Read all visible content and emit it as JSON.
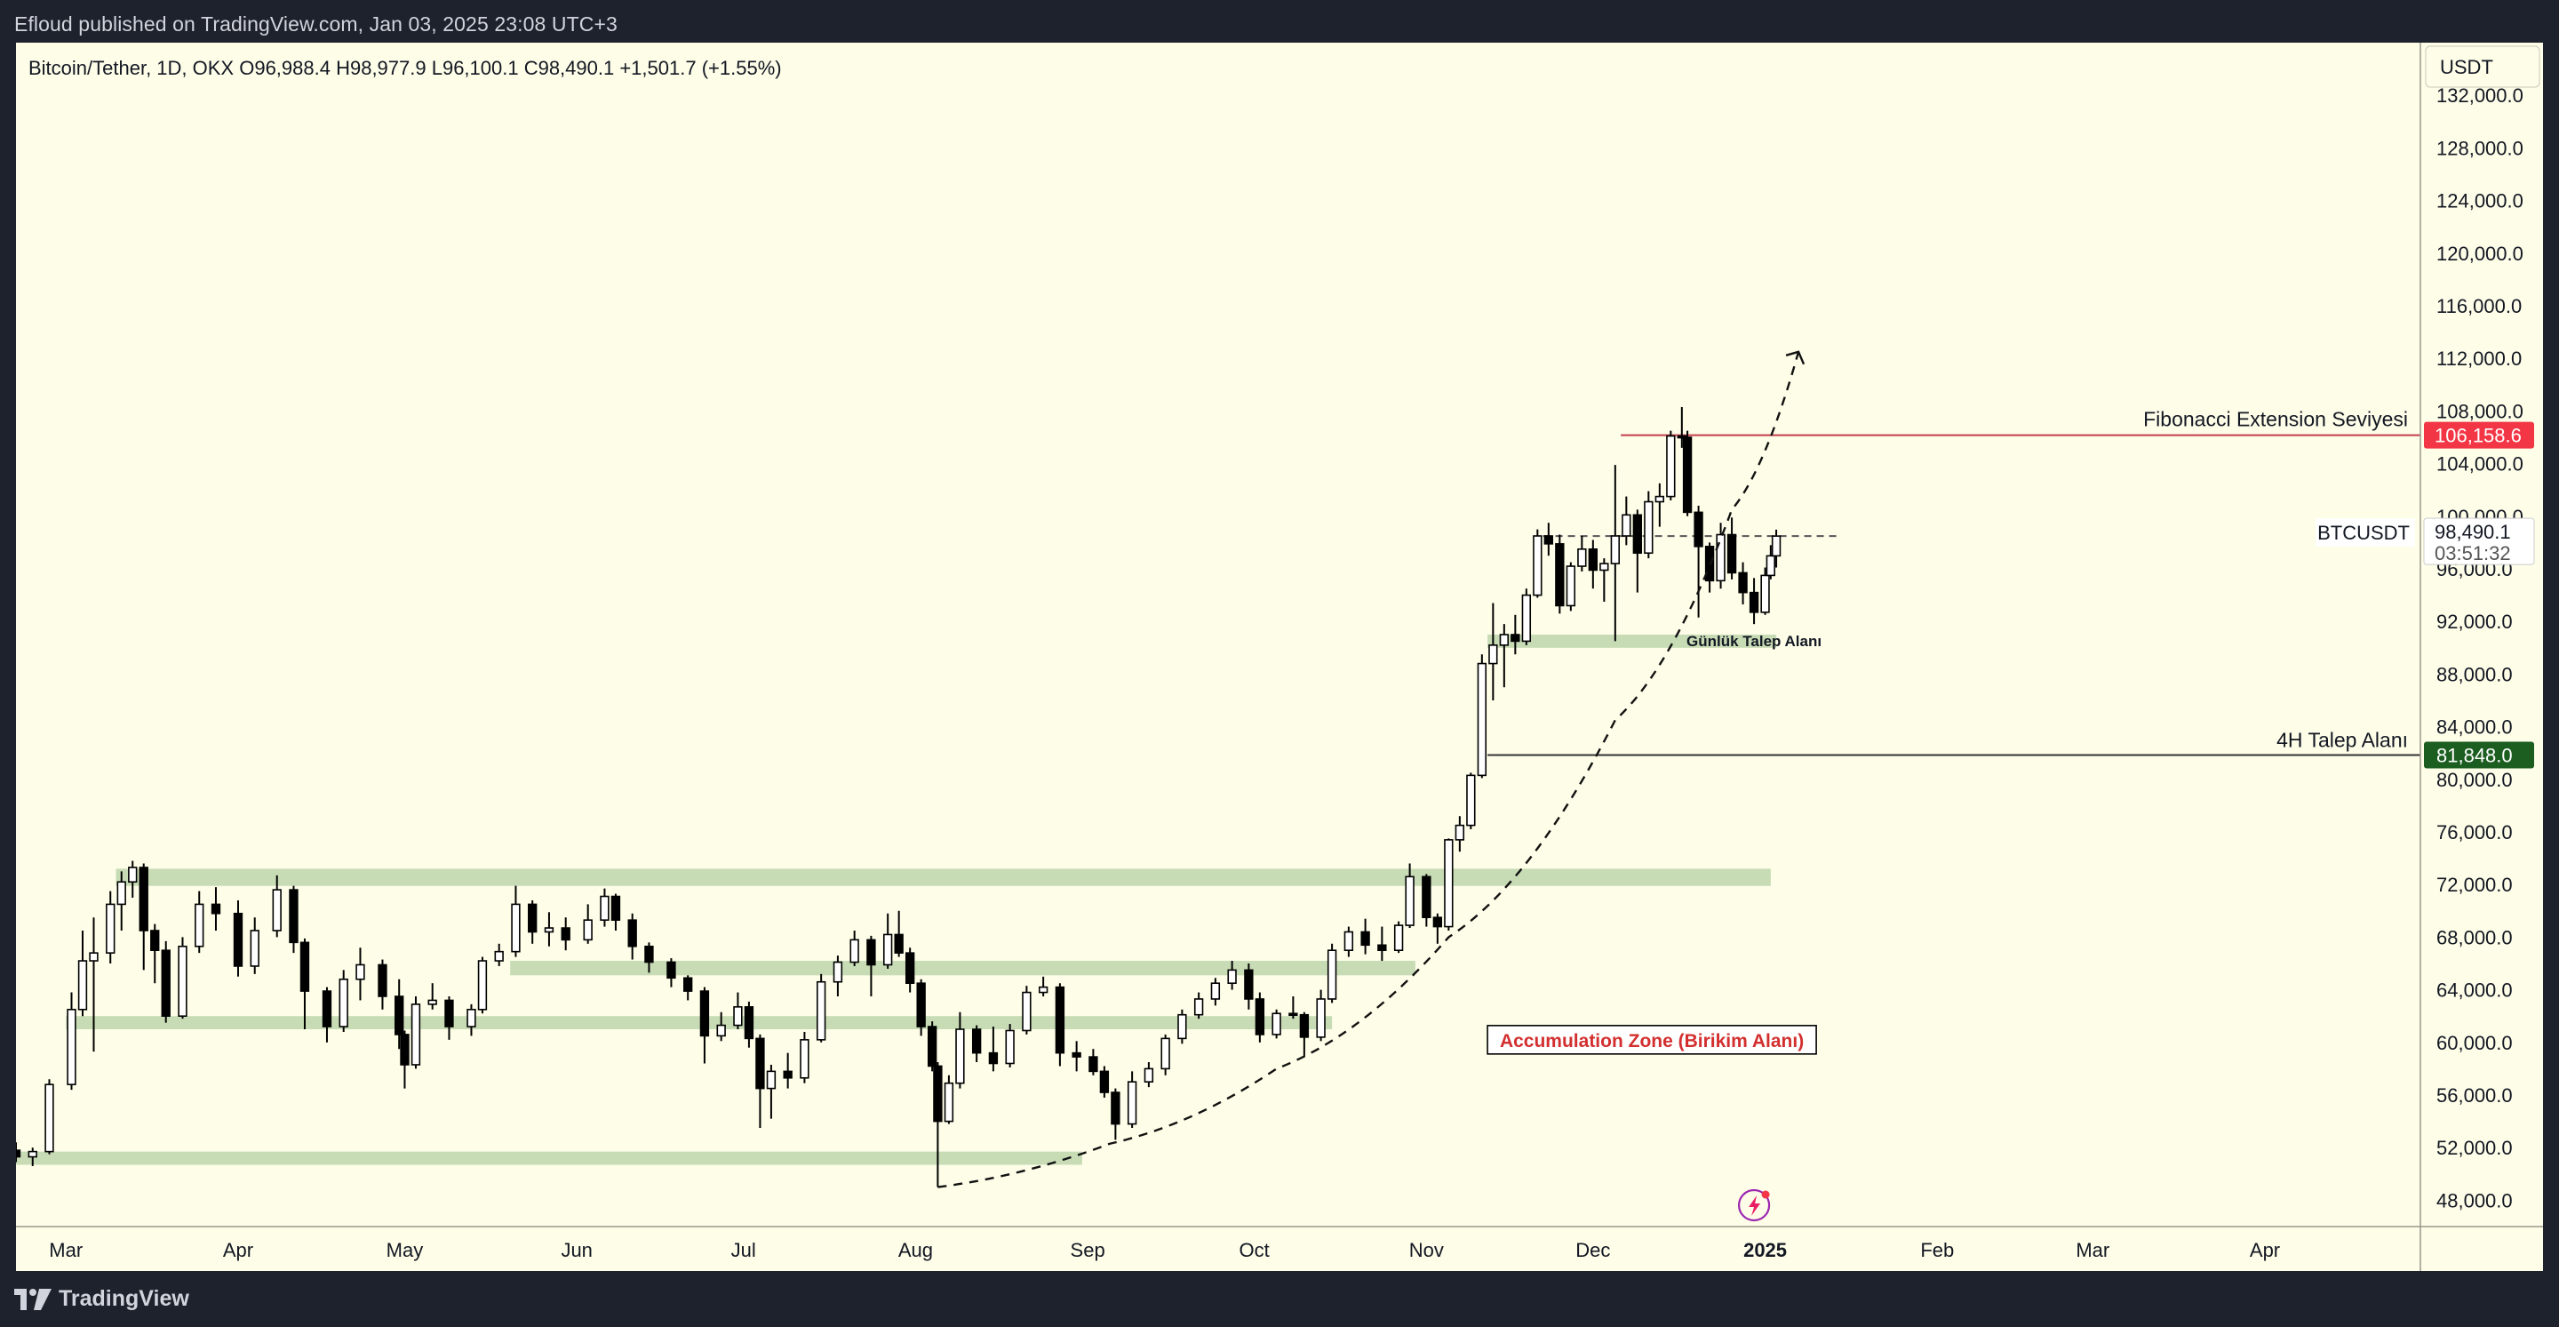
{
  "header": {
    "caption": "Efloud published on TradingView.com, Jan 03, 2025 23:08 UTC+3"
  },
  "footer": {
    "brand": "TradingView"
  },
  "chart_data": {
    "type": "candlestick",
    "title": "Bitcoin/Tether, 1D, OKX",
    "ohlc_legend": {
      "open": "O96,988.4",
      "high": "H98,977.9",
      "low": "L96,100.1",
      "close": "C98,490.1",
      "change": "+1,501.7 (+1.55%)"
    },
    "currency": "USDT",
    "symbol": "BTCUSDT",
    "last_price": 98490.1,
    "last_price_label": "98,490.1",
    "countdown": "03:51:32",
    "y_range": [
      46000,
      136000
    ],
    "y_ticks": [
      48000,
      52000,
      56000,
      60000,
      64000,
      68000,
      72000,
      76000,
      80000,
      84000,
      88000,
      92000,
      96000,
      100000,
      104000,
      108000,
      112000,
      116000,
      120000,
      124000,
      128000,
      132000
    ],
    "y_tick_labels": [
      "48,000.0",
      "52,000.0",
      "56,000.0",
      "60,000.0",
      "64,000.0",
      "68,000.0",
      "72,000.0",
      "76,000.0",
      "80,000.0",
      "84,000.0",
      "88,000.0",
      "92,000.0",
      "96,000.0",
      "100,000.0",
      "104,000.0",
      "108,000.0",
      "112,000.0",
      "116,000.0",
      "120,000.0",
      "124,000.0",
      "128,000.0",
      "132,000.0"
    ],
    "x_range": [
      "2024-02-21",
      "2025-04-29"
    ],
    "x_ticks": [
      {
        "date": "2024-03-01",
        "label": "Mar"
      },
      {
        "date": "2024-04-01",
        "label": "Apr"
      },
      {
        "date": "2024-05-01",
        "label": "May"
      },
      {
        "date": "2024-06-01",
        "label": "Jun"
      },
      {
        "date": "2024-07-01",
        "label": "Jul"
      },
      {
        "date": "2024-08-01",
        "label": "Aug"
      },
      {
        "date": "2024-09-01",
        "label": "Sep"
      },
      {
        "date": "2024-10-01",
        "label": "Oct"
      },
      {
        "date": "2024-11-01",
        "label": "Nov"
      },
      {
        "date": "2024-12-01",
        "label": "Dec"
      },
      {
        "date": "2025-01-01",
        "label": "2025",
        "bold": true
      },
      {
        "date": "2025-02-01",
        "label": "Feb"
      },
      {
        "date": "2025-03-01",
        "label": "Mar"
      },
      {
        "date": "2025-04-01",
        "label": "Apr"
      }
    ],
    "candles_daily": [
      [
        "2024-02-21",
        51800,
        52400,
        50900,
        51300
      ],
      [
        "2024-02-24",
        51300,
        52000,
        50600,
        51700
      ],
      [
        "2024-02-27",
        51700,
        57200,
        51500,
        56800
      ],
      [
        "2024-03-02",
        56800,
        63800,
        56400,
        62500
      ],
      [
        "2024-03-04",
        62500,
        68500,
        62000,
        66200
      ],
      [
        "2024-03-06",
        66200,
        69500,
        59300,
        66800
      ],
      [
        "2024-03-09",
        66800,
        71500,
        66000,
        70500
      ],
      [
        "2024-03-11",
        70500,
        73000,
        68500,
        72200
      ],
      [
        "2024-03-13",
        72200,
        73800,
        71000,
        73300
      ],
      [
        "2024-03-15",
        73300,
        73600,
        65500,
        68500
      ],
      [
        "2024-03-17",
        68500,
        69000,
        64500,
        67000
      ],
      [
        "2024-03-19",
        67000,
        67700,
        61500,
        62000
      ],
      [
        "2024-03-22",
        62000,
        68000,
        61800,
        67300
      ],
      [
        "2024-03-25",
        67300,
        71500,
        66800,
        70500
      ],
      [
        "2024-03-28",
        70500,
        71800,
        68500,
        69800
      ],
      [
        "2024-04-01",
        69800,
        70800,
        65000,
        65800
      ],
      [
        "2024-04-04",
        65800,
        69500,
        65200,
        68500
      ],
      [
        "2024-04-08",
        68500,
        72700,
        68000,
        71600
      ],
      [
        "2024-04-11",
        71600,
        71900,
        66800,
        67600
      ],
      [
        "2024-04-13",
        67600,
        67900,
        61000,
        63900
      ],
      [
        "2024-04-17",
        63900,
        64200,
        60000,
        61200
      ],
      [
        "2024-04-20",
        61200,
        65500,
        60800,
        64800
      ],
      [
        "2024-04-23",
        64800,
        67200,
        63200,
        65900
      ],
      [
        "2024-04-27",
        65900,
        66300,
        62500,
        63500
      ],
      [
        "2024-04-30",
        63500,
        64800,
        59500,
        60600
      ],
      [
        "2024-05-01",
        60600,
        60900,
        56500,
        58300
      ],
      [
        "2024-05-03",
        58300,
        63500,
        58000,
        62900
      ],
      [
        "2024-05-06",
        62900,
        64500,
        62500,
        63200
      ],
      [
        "2024-05-09",
        63200,
        63500,
        60200,
        61200
      ],
      [
        "2024-05-13",
        61200,
        62900,
        60500,
        62500
      ],
      [
        "2024-05-15",
        62500,
        66500,
        62200,
        66200
      ],
      [
        "2024-05-18",
        66200,
        67500,
        65800,
        66900
      ],
      [
        "2024-05-21",
        66900,
        71900,
        66500,
        70500
      ],
      [
        "2024-05-24",
        70500,
        70800,
        67500,
        68400
      ],
      [
        "2024-05-27",
        68400,
        69900,
        67300,
        68700
      ],
      [
        "2024-05-30",
        68700,
        69500,
        67000,
        67800
      ],
      [
        "2024-06-03",
        67800,
        70500,
        67500,
        69300
      ],
      [
        "2024-06-06",
        69300,
        71700,
        68800,
        71100
      ],
      [
        "2024-06-08",
        71100,
        71300,
        68500,
        69300
      ],
      [
        "2024-06-11",
        69300,
        69800,
        66300,
        67300
      ],
      [
        "2024-06-14",
        67300,
        67600,
        65300,
        66100
      ],
      [
        "2024-06-18",
        66100,
        66400,
        64200,
        64900
      ],
      [
        "2024-06-21",
        64900,
        65100,
        63200,
        63900
      ],
      [
        "2024-06-24",
        63900,
        64200,
        58400,
        60500
      ],
      [
        "2024-06-27",
        60500,
        62300,
        60100,
        61300
      ],
      [
        "2024-06-30",
        61300,
        63800,
        61000,
        62700
      ],
      [
        "2024-07-02",
        62700,
        63100,
        59600,
        60300
      ],
      [
        "2024-07-04",
        60300,
        60600,
        53500,
        56500
      ],
      [
        "2024-07-06",
        56500,
        58300,
        54200,
        57800
      ],
      [
        "2024-07-09",
        57800,
        59200,
        56500,
        57300
      ],
      [
        "2024-07-12",
        57300,
        60800,
        56900,
        60200
      ],
      [
        "2024-07-15",
        60200,
        65200,
        60000,
        64600
      ],
      [
        "2024-07-18",
        64600,
        66600,
        63500,
        66100
      ],
      [
        "2024-07-21",
        66100,
        68500,
        65800,
        67800
      ],
      [
        "2024-07-24",
        67800,
        68100,
        63500,
        65900
      ],
      [
        "2024-07-27",
        65900,
        69800,
        65600,
        68200
      ],
      [
        "2024-07-29",
        68200,
        70000,
        66500,
        66800
      ],
      [
        "2024-07-31",
        66800,
        67200,
        63800,
        64500
      ],
      [
        "2024-08-02",
        64500,
        64800,
        60500,
        61200
      ],
      [
        "2024-08-04",
        61200,
        61600,
        57800,
        58200
      ],
      [
        "2024-08-05",
        58200,
        58500,
        49000,
        54000
      ],
      [
        "2024-08-07",
        54000,
        57500,
        53800,
        56900
      ],
      [
        "2024-08-09",
        56900,
        62300,
        56500,
        61000
      ],
      [
        "2024-08-12",
        61000,
        61300,
        58500,
        59200
      ],
      [
        "2024-08-15",
        59200,
        61200,
        57800,
        58400
      ],
      [
        "2024-08-18",
        58400,
        61400,
        58100,
        60900
      ],
      [
        "2024-08-21",
        60900,
        64300,
        60600,
        63800
      ],
      [
        "2024-08-24",
        63800,
        65000,
        63500,
        64200
      ],
      [
        "2024-08-27",
        64200,
        64500,
        58200,
        59200
      ],
      [
        "2024-08-30",
        59200,
        60100,
        57800,
        58900
      ],
      [
        "2024-09-02",
        58900,
        59500,
        57500,
        57800
      ],
      [
        "2024-09-04",
        57800,
        58200,
        55800,
        56200
      ],
      [
        "2024-09-06",
        56200,
        56500,
        52600,
        53800
      ],
      [
        "2024-09-09",
        53800,
        57800,
        53500,
        57000
      ],
      [
        "2024-09-12",
        57000,
        58500,
        56600,
        58000
      ],
      [
        "2024-09-15",
        58000,
        60600,
        57500,
        60300
      ],
      [
        "2024-09-18",
        60300,
        62500,
        59900,
        62100
      ],
      [
        "2024-09-21",
        62100,
        63800,
        61800,
        63300
      ],
      [
        "2024-09-24",
        63300,
        64900,
        62800,
        64500
      ],
      [
        "2024-09-27",
        64500,
        66200,
        64000,
        65500
      ],
      [
        "2024-09-30",
        65500,
        66000,
        62500,
        63300
      ],
      [
        "2024-10-02",
        63300,
        63800,
        60000,
        60600
      ],
      [
        "2024-10-05",
        60600,
        62500,
        60300,
        62200
      ],
      [
        "2024-10-08",
        62200,
        63500,
        61800,
        62100
      ],
      [
        "2024-10-10",
        62100,
        62300,
        58900,
        60400
      ],
      [
        "2024-10-13",
        60400,
        64000,
        60100,
        63300
      ],
      [
        "2024-10-15",
        63300,
        67500,
        63000,
        67000
      ],
      [
        "2024-10-18",
        67000,
        68800,
        66500,
        68400
      ],
      [
        "2024-10-21",
        68400,
        69400,
        66700,
        67400
      ],
      [
        "2024-10-24",
        67400,
        68800,
        66200,
        67000
      ],
      [
        "2024-10-27",
        67000,
        69200,
        66800,
        68900
      ],
      [
        "2024-10-29",
        68900,
        73600,
        68700,
        72600
      ],
      [
        "2024-11-01",
        72600,
        72800,
        68800,
        69500
      ],
      [
        "2024-11-03",
        69500,
        69800,
        67500,
        68800
      ],
      [
        "2024-11-05",
        68800,
        75500,
        68500,
        75400
      ],
      [
        "2024-11-07",
        75400,
        77200,
        74500,
        76500
      ],
      [
        "2024-11-09",
        76500,
        80500,
        76200,
        80300
      ],
      [
        "2024-11-11",
        80300,
        89500,
        80100,
        88800
      ],
      [
        "2024-11-13",
        88800,
        93400,
        86000,
        90200
      ],
      [
        "2024-11-15",
        90200,
        91800,
        87000,
        91000
      ],
      [
        "2024-11-17",
        91000,
        92500,
        89500,
        90500
      ],
      [
        "2024-11-19",
        90500,
        94500,
        90200,
        94000
      ],
      [
        "2024-11-21",
        94000,
        99000,
        93800,
        98500
      ],
      [
        "2024-11-23",
        98500,
        99500,
        97000,
        97900
      ],
      [
        "2024-11-25",
        97900,
        98600,
        92600,
        93200
      ],
      [
        "2024-11-27",
        93200,
        96500,
        92800,
        96200
      ],
      [
        "2024-11-29",
        96200,
        98500,
        95800,
        97500
      ],
      [
        "2024-12-01",
        97500,
        98200,
        94500,
        95900
      ],
      [
        "2024-12-03",
        95900,
        96800,
        93500,
        96400
      ],
      [
        "2024-12-05",
        96400,
        103900,
        90500,
        98500
      ],
      [
        "2024-12-07",
        98500,
        101500,
        97800,
        100100
      ],
      [
        "2024-12-09",
        100100,
        100500,
        94200,
        97200
      ],
      [
        "2024-12-11",
        97200,
        101900,
        96800,
        101100
      ],
      [
        "2024-12-13",
        101100,
        102500,
        99200,
        101500
      ],
      [
        "2024-12-15",
        101500,
        106500,
        101200,
        106100
      ],
      [
        "2024-12-17",
        106100,
        108300,
        105200,
        106000
      ],
      [
        "2024-12-18",
        106000,
        106500,
        100000,
        100300
      ],
      [
        "2024-12-20",
        100300,
        100800,
        92300,
        97700
      ],
      [
        "2024-12-22",
        97700,
        98000,
        94200,
        95100
      ],
      [
        "2024-12-24",
        95100,
        99500,
        94500,
        98600
      ],
      [
        "2024-12-26",
        98600,
        99900,
        95200,
        95700
      ],
      [
        "2024-12-28",
        95700,
        96500,
        93300,
        94200
      ],
      [
        "2024-12-30",
        94200,
        95300,
        91800,
        92700
      ],
      [
        "2025-01-01",
        92700,
        96100,
        92500,
        95500
      ],
      [
        "2025-01-02",
        95500,
        97800,
        95200,
        96988
      ],
      [
        "2025-01-03",
        96988,
        98978,
        96100,
        98490
      ]
    ],
    "drawings": {
      "zones": [
        {
          "name": "zone-72k",
          "from": "2024-03-10",
          "to": "2025-01-02",
          "low": 71900,
          "high": 73200
        },
        {
          "name": "zone-65k",
          "from": "2024-05-20",
          "to": "2024-10-30",
          "low": 65100,
          "high": 66200
        },
        {
          "name": "zone-61k",
          "from": "2024-03-01",
          "to": "2024-10-15",
          "low": 61000,
          "high": 62000
        },
        {
          "name": "zone-51k",
          "from": "2024-02-21",
          "to": "2024-08-31",
          "low": 50700,
          "high": 51700
        },
        {
          "name": "zone-daily-demand",
          "from": "2024-11-12",
          "to": "2025-01-03",
          "low": 90000,
          "high": 91000
        }
      ],
      "lines": [
        {
          "name": "fib-extension-line",
          "from": "2024-12-06",
          "to": "2025-04-29",
          "price": 106158.6,
          "color": "#c33d4a"
        },
        {
          "name": "4h-demand-line",
          "from": "2024-11-12",
          "to": "2025-04-29",
          "price": 81848.0,
          "color": "#333333"
        },
        {
          "name": "last-price-dashed",
          "from": "2024-11-22",
          "to": "2025-01-14",
          "price": 98490.1,
          "color": "#555555",
          "dashed": true
        }
      ],
      "labels": {
        "fib": "Fibonacci Extension Seviyesi",
        "fib_price": "106,158.6",
        "four_h": "4H Talep Alanı",
        "four_h_price": "81,848.0",
        "daily_zone": "Günlük Talep Alanı",
        "accumulation": "Accumulation Zone (Birikim Alanı)"
      },
      "curve": [
        [
          "2024-08-05",
          49000
        ],
        [
          "2024-09-05",
          52300
        ],
        [
          "2024-10-05",
          58000
        ],
        [
          "2024-11-05",
          68000
        ],
        [
          "2024-12-05",
          84500
        ],
        [
          "2024-12-26",
          100500
        ],
        [
          "2025-01-07",
          112500
        ]
      ]
    },
    "colors": {
      "up": "#ffffff",
      "down": "#000000",
      "wick": "#000000",
      "zone": "#c7dbb5",
      "fib_badge": "#f23645",
      "four_h_badge": "#1b5e20",
      "accumulation_text": "#d32f2f",
      "background": "#fdfde8",
      "grid_divider": "#9a9a8a"
    },
    "icons": [
      "lightning-icon",
      "tradingview-logo"
    ]
  }
}
